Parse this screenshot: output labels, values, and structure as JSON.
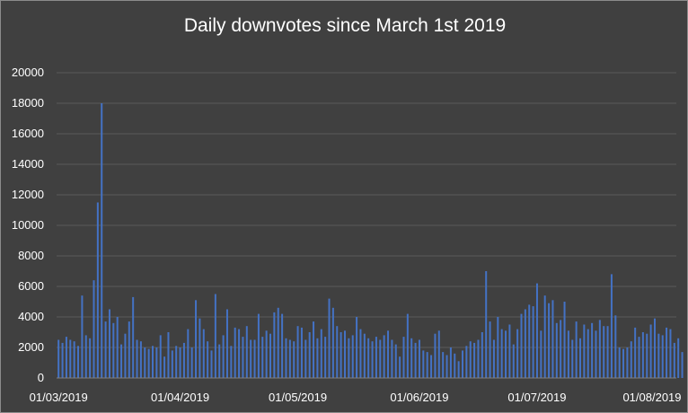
{
  "chart_data": {
    "type": "bar",
    "title": "Daily downvotes since March 1st 2019",
    "xlabel": "",
    "ylabel": "",
    "ylim": [
      0,
      20000
    ],
    "yticks": [
      0,
      2000,
      4000,
      6000,
      8000,
      10000,
      12000,
      14000,
      16000,
      18000,
      20000
    ],
    "x_tick_labels": [
      "01/03/2019",
      "01/04/2019",
      "01/05/2019",
      "01/06/2019",
      "01/07/2019",
      "01/08/2019"
    ],
    "x_start": "01/03/2019",
    "x_end": "05/08/2019",
    "grid": true,
    "legend": "none",
    "bar_color": "#4472c4",
    "series": [
      {
        "values": [
          2500,
          2300,
          2700,
          2500,
          2400,
          2100,
          5400,
          2800,
          2600,
          6400,
          11500,
          18000,
          3700,
          4500,
          3600,
          4000,
          2200,
          2900,
          3700,
          5300,
          2500,
          2400,
          2000,
          1900,
          2100,
          2000,
          2800,
          1400,
          3000,
          1800,
          2100,
          2000,
          2300,
          3200,
          2000,
          5100,
          3900,
          3200,
          2400,
          1800,
          5500,
          2200,
          2800,
          4500,
          2100,
          3300,
          3200,
          2700,
          3400,
          2500,
          2500,
          4200,
          2700,
          3100,
          2900,
          4300,
          4600,
          4200,
          2600,
          2500,
          2400,
          3400,
          3300,
          2500,
          3000,
          3700,
          2600,
          3200,
          2700,
          5200,
          4600,
          3400,
          3000,
          3100,
          2600,
          2800,
          4000,
          3200,
          2900,
          2600,
          2400,
          2700,
          2500,
          2800,
          3100,
          2500,
          2200,
          1400,
          2700,
          4200,
          2600,
          2300,
          2500,
          1800,
          1700,
          1500,
          2900,
          3100,
          1700,
          1500,
          2000,
          1600,
          1100,
          1800,
          2100,
          2400,
          2300,
          2500,
          3000,
          7000,
          3700,
          2500,
          4000,
          3200,
          3100,
          3500,
          2200,
          3200,
          4200,
          4500,
          4800,
          4700,
          6200,
          3100,
          5400,
          4900,
          5100,
          3600,
          3800,
          5000,
          3100,
          2500,
          3700,
          2600,
          3500,
          3200,
          3600,
          3100,
          3800,
          3400,
          3400,
          6800,
          4100,
          2000,
          1900,
          2000,
          2400,
          3300,
          2700,
          3000,
          2900,
          3500,
          3900,
          2900,
          2800,
          3300,
          3200,
          2300,
          2600,
          1700
        ]
      }
    ]
  }
}
